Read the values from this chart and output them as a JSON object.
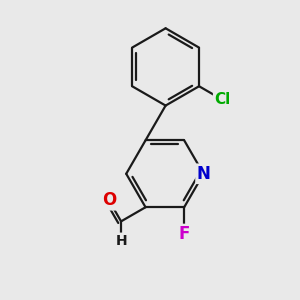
{
  "background_color": "#e8e8e8",
  "bond_color": "#1a1a1a",
  "atom_colors": {
    "O": "#dd0000",
    "N": "#0000cc",
    "F": "#cc00cc",
    "Cl": "#00aa00",
    "H": "#1a1a1a",
    "C": "#1a1a1a"
  },
  "bond_width": 1.6,
  "font_size": 11,
  "fig_bg": "#e9e9e9"
}
